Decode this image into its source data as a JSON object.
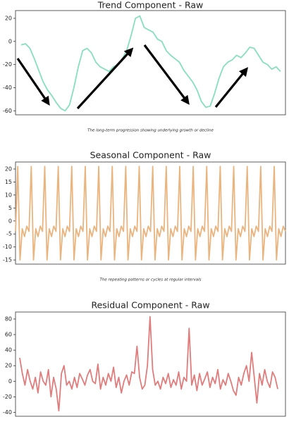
{
  "chart_data": [
    {
      "type": "line",
      "title": "Trend Component - Raw",
      "caption": "The long-term progression showing underlying growth or decline",
      "color": "#86dfbd",
      "values": [
        -3,
        -2,
        -6,
        -15,
        -25,
        -35,
        -42,
        -47,
        -53,
        -58,
        -60,
        -55,
        -40,
        -22,
        -8,
        -6,
        -10,
        -18,
        -22,
        -24,
        -26,
        -22,
        -20,
        -15,
        -8,
        5,
        20,
        22,
        12,
        10,
        8,
        2,
        0,
        -8,
        -12,
        -15,
        -18,
        -25,
        -30,
        -35,
        -42,
        -52,
        -57,
        -56,
        -45,
        -32,
        -22,
        -18,
        -16,
        -12,
        -14,
        -10,
        -5,
        -6,
        -12,
        -18,
        -20,
        -24,
        -22,
        -26
      ],
      "ylim": [
        -63.5,
        26.7
      ],
      "yticks": [
        -60,
        -40,
        -20,
        0,
        20
      ]
    },
    {
      "type": "line",
      "title": "Seasonal Component - Raw",
      "caption": "The repeating patterns or cycles at regular intervals",
      "color": "#eab47e",
      "values": [
        -4,
        21,
        -15,
        -3,
        -6,
        -2,
        -4,
        21,
        -15,
        -3,
        -6,
        -2,
        -4,
        21,
        -15,
        -3,
        -6,
        -2,
        -4,
        21,
        -15,
        -3,
        -6,
        -2,
        -4,
        21,
        -15,
        -3,
        -6,
        -2,
        -4,
        21,
        -15,
        -3,
        -6,
        -2,
        -4,
        21,
        -15,
        -3,
        -6,
        -2,
        -4,
        21,
        -15,
        -3,
        -6,
        -2,
        -4,
        21,
        -15,
        -3,
        -6,
        -2,
        -4,
        21,
        -15,
        -3,
        -6,
        -2,
        -4,
        21,
        -15,
        -3,
        -6,
        -2,
        -4,
        21,
        -15,
        -3,
        -6,
        -2,
        -4,
        21,
        -15,
        -3,
        -6,
        -2,
        -4,
        21,
        -15,
        -3,
        -6,
        -2,
        -4,
        21,
        -15,
        -3,
        -6,
        -2,
        -4,
        21,
        -15,
        -3,
        -6,
        -2,
        -4,
        21,
        -15,
        -3,
        -6,
        -2,
        -4,
        21,
        -15,
        -3,
        -6,
        -2,
        -4,
        21,
        -15,
        -3,
        -6,
        -2,
        -4,
        21,
        -15,
        -3,
        -6,
        -2,
        -4
      ],
      "ylim": [
        -16.6,
        22.7
      ],
      "yticks": [
        -15,
        -10,
        -5,
        0,
        5,
        10,
        15,
        20
      ]
    },
    {
      "type": "line",
      "title": "Residual Component - Raw",
      "color": "#e07c7c",
      "values": [
        30,
        10,
        -5,
        15,
        0,
        -10,
        5,
        -15,
        12,
        0,
        -5,
        15,
        -20,
        5,
        -10,
        -38,
        10,
        20,
        -5,
        0,
        -10,
        5,
        -8,
        10,
        3,
        -5,
        8,
        15,
        0,
        -3,
        22,
        -10,
        5,
        -5,
        10,
        0,
        18,
        -8,
        5,
        -15,
        0,
        8,
        -5,
        12,
        10,
        45,
        5,
        -10,
        -5,
        20,
        83,
        15,
        -5,
        0,
        -10,
        5,
        -3,
        10,
        -8,
        2,
        -5,
        12,
        -10,
        5,
        0,
        68,
        -5,
        8,
        -12,
        10,
        -5,
        3,
        12,
        -8,
        5,
        -3,
        15,
        -10,
        2,
        -5,
        10,
        0,
        -12,
        -18,
        5,
        -5,
        10,
        20,
        0,
        37,
        5,
        -28,
        10,
        -5,
        15,
        0,
        -8,
        12,
        5,
        -10
      ],
      "ylim": [
        -45,
        89
      ],
      "yticks": [
        -40,
        -20,
        0,
        20,
        40,
        60,
        80
      ]
    }
  ]
}
